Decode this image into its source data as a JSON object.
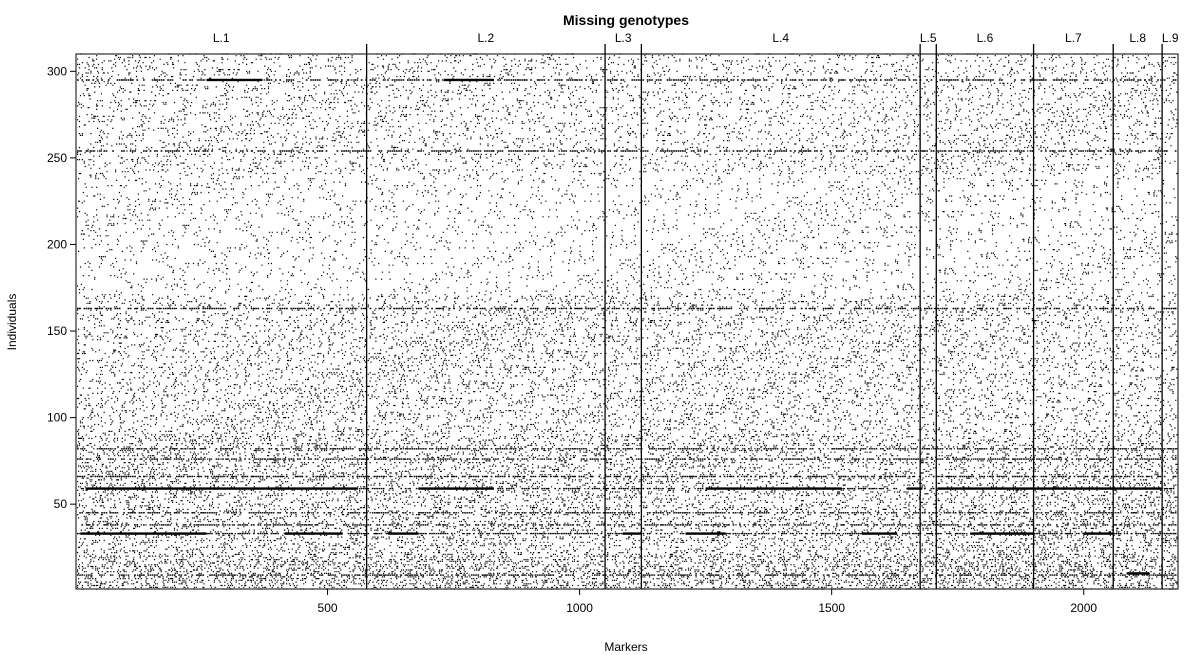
{
  "chart_data": {
    "type": "heatmap",
    "title": "Missing genotypes",
    "xlabel": "Markers",
    "ylabel": "Individuals",
    "xlim": [
      1,
      2187
    ],
    "ylim": [
      1,
      310
    ],
    "x_ticks": [
      500,
      1000,
      1500,
      2000
    ],
    "y_ticks": [
      50,
      100,
      150,
      200,
      250,
      300
    ],
    "grid": false,
    "linkage_groups": [
      {
        "label": "L.1",
        "start": 1,
        "end": 577
      },
      {
        "label": "L.2",
        "start": 578,
        "end": 1050
      },
      {
        "label": "L.3",
        "start": 1051,
        "end": 1122
      },
      {
        "label": "L.4",
        "start": 1123,
        "end": 1675
      },
      {
        "label": "L.5",
        "start": 1676,
        "end": 1707
      },
      {
        "label": "L.6",
        "start": 1708,
        "end": 1900
      },
      {
        "label": "L.7",
        "start": 1901,
        "end": 2058
      },
      {
        "label": "L.8",
        "start": 2059,
        "end": 2155
      },
      {
        "label": "L.9",
        "start": 2156,
        "end": 2187
      }
    ],
    "mostly_missing_individuals": [
      9,
      33,
      38,
      45,
      59,
      66,
      76,
      82,
      163,
      254,
      295
    ],
    "missing_segments": [
      {
        "individual": 33,
        "from": 10,
        "to": 260
      },
      {
        "individual": 33,
        "from": 415,
        "to": 530
      },
      {
        "individual": 33,
        "from": 620,
        "to": 680
      },
      {
        "individual": 33,
        "from": 1085,
        "to": 1122
      },
      {
        "individual": 33,
        "from": 1210,
        "to": 1290
      },
      {
        "individual": 33,
        "from": 1560,
        "to": 1630
      },
      {
        "individual": 33,
        "from": 1775,
        "to": 1900
      },
      {
        "individual": 33,
        "from": 2000,
        "to": 2058
      },
      {
        "individual": 59,
        "from": 20,
        "to": 560
      },
      {
        "individual": 59,
        "from": 680,
        "to": 830
      },
      {
        "individual": 59,
        "from": 1250,
        "to": 1520
      },
      {
        "individual": 59,
        "from": 1650,
        "to": 1680
      },
      {
        "individual": 59,
        "from": 1710,
        "to": 2155
      },
      {
        "individual": 295,
        "from": 260,
        "to": 370
      },
      {
        "individual": 295,
        "from": 730,
        "to": 830
      },
      {
        "individual": 10,
        "from": 2085,
        "to": 2130
      }
    ],
    "missing_dot_density": [
      {
        "individuals": [
          1,
          20
        ],
        "fraction": 0.18
      },
      {
        "individuals": [
          21,
          90
        ],
        "fraction": 0.12
      },
      {
        "individuals": [
          91,
          170
        ],
        "fraction": 0.08
      },
      {
        "individuals": [
          171,
          240
        ],
        "fraction": 0.035
      },
      {
        "individuals": [
          241,
          310
        ],
        "fraction": 0.06
      }
    ]
  }
}
